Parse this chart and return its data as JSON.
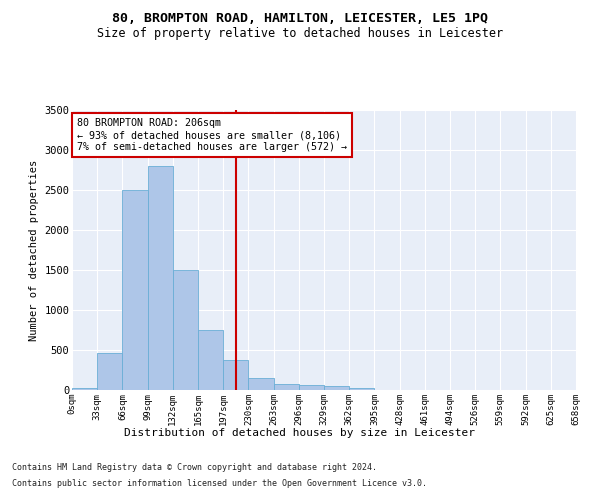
{
  "title_line1": "80, BROMPTON ROAD, HAMILTON, LEICESTER, LE5 1PQ",
  "title_line2": "Size of property relative to detached houses in Leicester",
  "xlabel": "Distribution of detached houses by size in Leicester",
  "ylabel": "Number of detached properties",
  "footnote1": "Contains HM Land Registry data © Crown copyright and database right 2024.",
  "footnote2": "Contains public sector information licensed under the Open Government Licence v3.0.",
  "annotation_line1": "80 BROMPTON ROAD: 206sqm",
  "annotation_line2": "← 93% of detached houses are smaller (8,106)",
  "annotation_line3": "7% of semi-detached houses are larger (572) →",
  "bar_values": [
    30,
    460,
    2500,
    2800,
    1500,
    750,
    380,
    145,
    80,
    60,
    55,
    20,
    0,
    0,
    0,
    0,
    0,
    0,
    0,
    0
  ],
  "bin_labels": [
    "0sqm",
    "33sqm",
    "66sqm",
    "99sqm",
    "132sqm",
    "165sqm",
    "197sqm",
    "230sqm",
    "263sqm",
    "296sqm",
    "329sqm",
    "362sqm",
    "395sqm",
    "428sqm",
    "461sqm",
    "494sqm",
    "526sqm",
    "559sqm",
    "592sqm",
    "625sqm",
    "658sqm"
  ],
  "bar_color": "#aec6e8",
  "bar_edge_color": "#6aaed6",
  "vline_color": "#cc0000",
  "vline_x": 6.5,
  "ylim": [
    0,
    3500
  ],
  "yticks": [
    0,
    500,
    1000,
    1500,
    2000,
    2500,
    3000,
    3500
  ],
  "bg_color": "#e8eef8",
  "annotation_box_color": "#cc0000",
  "figsize": [
    6.0,
    5.0
  ],
  "dpi": 100
}
